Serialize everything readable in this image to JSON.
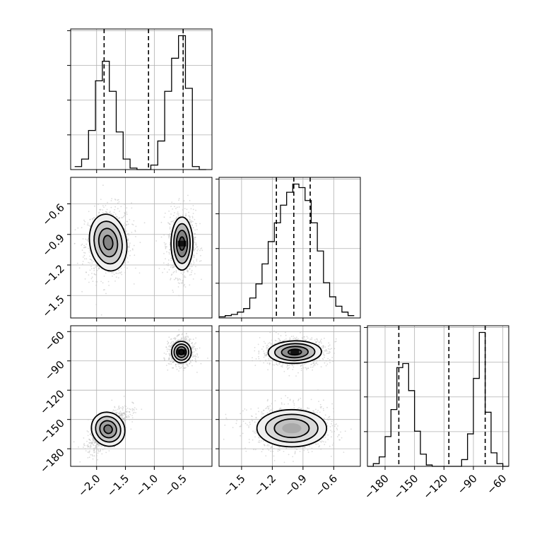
{
  "chart_data": {
    "type": "corner",
    "parameters": [
      {
        "range": [
          -2.45,
          0.0
        ],
        "ticks": [
          -2.0,
          -1.5,
          -1.0,
          -0.5
        ],
        "tick_labels": [
          "−2.0",
          "−1.5",
          "−1.0",
          "−0.5"
        ]
      },
      {
        "range": [
          -1.72,
          -0.34
        ],
        "ticks": [
          -1.5,
          -1.2,
          -0.9,
          -0.6
        ],
        "tick_labels": [
          "−1.5",
          "−1.2",
          "−0.9",
          "−0.6"
        ]
      },
      {
        "range": [
          -198,
          -54
        ],
        "ticks": [
          -180,
          -150,
          -120,
          -90,
          -60
        ],
        "tick_labels": [
          "−180",
          "−150",
          "−120",
          "−90",
          "−60"
        ]
      }
    ],
    "diagonal": [
      {
        "param": 0,
        "bin_edges": [
          -2.38,
          -2.26,
          -2.14,
          -2.02,
          -1.9,
          -1.78,
          -1.66,
          -1.54,
          -1.42,
          -1.3,
          -1.18,
          -1.06,
          -0.94,
          -0.82,
          -0.7,
          -0.58,
          -0.46,
          -0.34,
          -0.22,
          -0.1
        ],
        "counts": [
          2,
          7,
          26,
          59,
          72,
          52,
          25,
          7,
          1,
          0,
          0,
          3,
          19,
          52,
          74,
          89,
          54,
          2,
          0
        ],
        "quantile_lines": [
          -1.87,
          -1.1,
          -0.5
        ]
      },
      {
        "param": 1,
        "bin_edges": [
          -1.72,
          -1.66,
          -1.6,
          -1.54,
          -1.48,
          -1.42,
          -1.36,
          -1.3,
          -1.24,
          -1.18,
          -1.12,
          -1.06,
          -1.0,
          -0.94,
          -0.88,
          -0.82,
          -0.76,
          -0.7,
          -0.64,
          -0.58,
          -0.52,
          -0.46,
          -0.4
        ],
        "counts": [
          1,
          2,
          3,
          5,
          8,
          17,
          29,
          46,
          65,
          81,
          96,
          107,
          114,
          111,
          100,
          81,
          57,
          30,
          18,
          10,
          5,
          2
        ],
        "quantile_lines": [
          -1.16,
          -0.99,
          -0.83
        ]
      },
      {
        "param": 2,
        "bin_edges": [
          -198,
          -192,
          -186,
          -180,
          -174,
          -168,
          -162,
          -156,
          -150,
          -144,
          -138,
          -132,
          -126,
          -120,
          -114,
          -108,
          -102,
          -96,
          -90,
          -84,
          -78,
          -72,
          -66,
          -60,
          -54
        ],
        "counts": [
          0,
          2,
          7,
          22,
          42,
          73,
          76,
          56,
          26,
          9,
          1,
          0,
          0,
          0,
          0,
          0,
          5,
          24,
          65,
          99,
          40,
          10,
          2,
          0
        ],
        "quantile_lines": [
          -166,
          -115,
          -78
        ]
      }
    ],
    "panels_2d": [
      {
        "x_param": 0,
        "y_param": 1,
        "clusters": [
          {
            "cx": -1.8,
            "cy": -0.98,
            "sx": 0.16,
            "sy": 0.14,
            "rho": 0.1,
            "peak": 0.65
          },
          {
            "cx": -0.52,
            "cy": -0.99,
            "sx": 0.095,
            "sy": 0.13,
            "rho": 0.0,
            "peak": 0.95
          }
        ]
      },
      {
        "x_param": 0,
        "y_param": 2,
        "clusters": [
          {
            "cx": -1.8,
            "cy": -160,
            "sx": 0.14,
            "sy": 9,
            "rho": 0.75,
            "peak": 0.7
          },
          {
            "cx": -0.53,
            "cy": -81,
            "sx": 0.085,
            "sy": 5.5,
            "rho": 0.0,
            "peak": 0.95
          }
        ]
      },
      {
        "x_param": 1,
        "y_param": 2,
        "clusters": [
          {
            "cx": -0.98,
            "cy": -81,
            "sx": 0.13,
            "sy": 5.8,
            "rho": 0.05,
            "peak": 0.85
          },
          {
            "cx": -1.01,
            "cy": -159,
            "sx": 0.17,
            "sy": 9.5,
            "rho": 0.0,
            "peak": 0.45
          }
        ]
      }
    ],
    "histogram_y_ticks_count": 4,
    "grid": true
  }
}
